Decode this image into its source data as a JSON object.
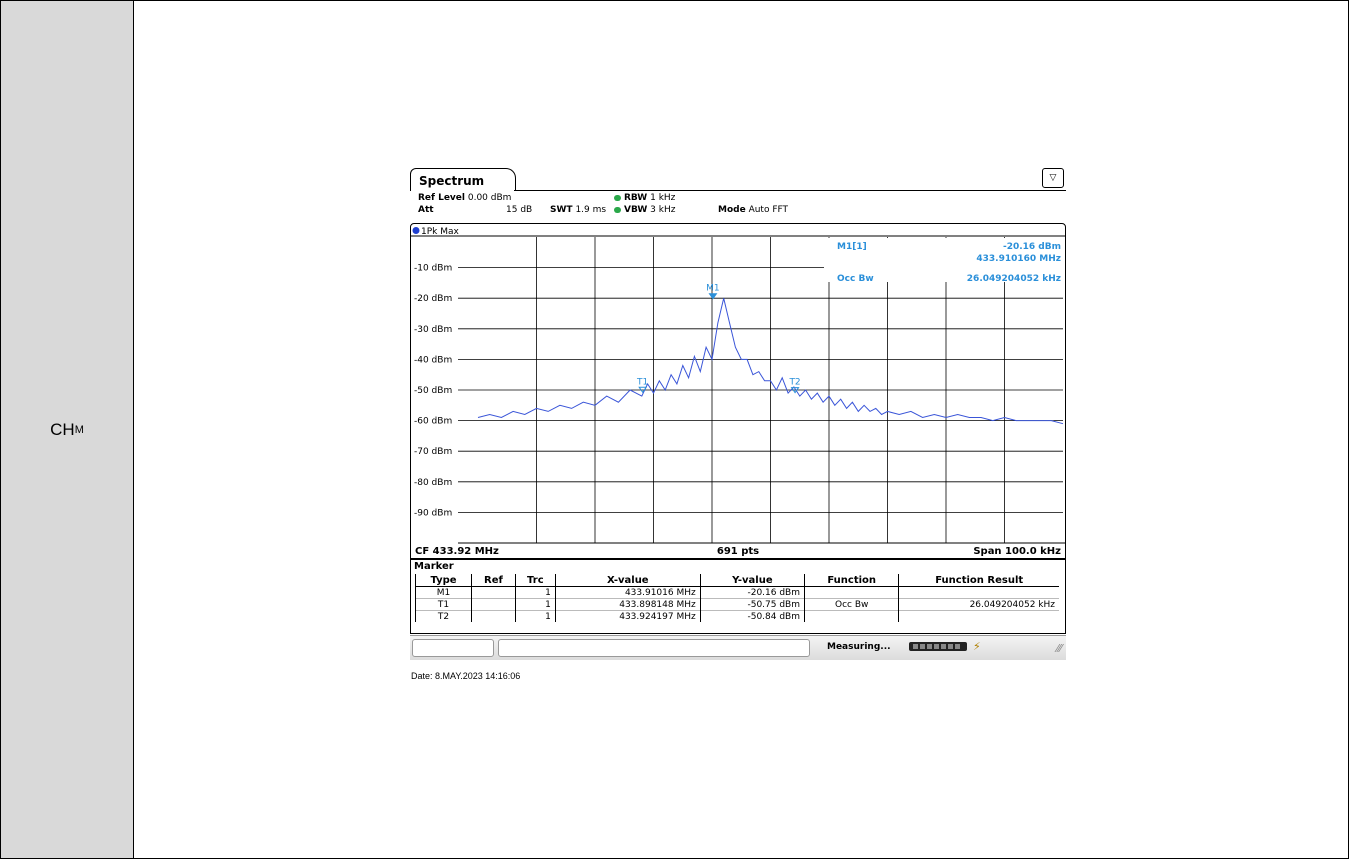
{
  "channel_label": "CH",
  "channel_sub": "M",
  "spectrum": {
    "tab_title": "Spectrum",
    "ref_level_label": "Ref Level",
    "ref_level_value": "0.00 dBm",
    "att_label": "Att",
    "att_value": "15 dB",
    "swt_label": "SWT",
    "swt_value": "1.9 ms",
    "rbw_label": "RBW",
    "rbw_value": "1 kHz",
    "vbw_label": "VBW",
    "vbw_value": "3 kHz",
    "mode_label": "Mode",
    "mode_value": "Auto FFT",
    "trace_label": "1Pk Max",
    "marker_readout": {
      "name": "M1[1]",
      "level": "-20.16 dBm",
      "freq": "433.910160 MHz",
      "occ_label": "Occ Bw",
      "occ_value": "26.049204052 kHz"
    },
    "cf_label": "CF 433.92 MHz",
    "pts_label": "691 pts",
    "span_label": "Span 100.0 kHz",
    "status_text": "Measuring...",
    "marker_section_title": "Marker",
    "marker_table": {
      "headers": [
        "Type",
        "Ref",
        "Trc",
        "X-value",
        "Y-value",
        "Function",
        "Function Result"
      ],
      "rows": [
        [
          "M1",
          "",
          "1",
          "433.91016 MHz",
          "-20.16 dBm",
          "",
          ""
        ],
        [
          "T1",
          "",
          "1",
          "433.898148 MHz",
          "-50.75 dBm",
          "Occ Bw",
          "26.049204052 kHz"
        ],
        [
          "T2",
          "",
          "1",
          "433.924197 MHz",
          "-50.84 dBm",
          "",
          ""
        ]
      ]
    }
  },
  "chart_data": {
    "type": "line",
    "xlabel": "",
    "ylabel": "",
    "y_tick_labels": [
      "-10 dBm",
      "-20 dBm",
      "-30 dBm",
      "-40 dBm",
      "-50 dBm",
      "-60 dBm",
      "-70 dBm",
      "-80 dBm",
      "-90 dBm"
    ],
    "y_ticks": [
      -10,
      -20,
      -30,
      -40,
      -50,
      -60,
      -70,
      -80,
      -90
    ],
    "ylim": [
      -100,
      0
    ],
    "xlim_khz_offset": [
      -50,
      50
    ],
    "series": [
      {
        "x_khz_offset": [
          -50,
          -48,
          -46,
          -44,
          -42,
          -40,
          -38,
          -36,
          -34,
          -32,
          -30,
          -28,
          -26,
          -24,
          -22,
          -21,
          -20,
          -19,
          -18,
          -17,
          -16,
          -15,
          -14,
          -13,
          -12,
          -11,
          -10,
          -9,
          -8,
          -7,
          -6,
          -5,
          -4,
          -3,
          -2,
          -1,
          0,
          1,
          2,
          3,
          4,
          5,
          6,
          7,
          8,
          9,
          10,
          11,
          12,
          13,
          14,
          15,
          16,
          17,
          18,
          19,
          20,
          22,
          24,
          26,
          28,
          30,
          32,
          34,
          36,
          38,
          40,
          42,
          44,
          46,
          48,
          50
        ],
        "y_dbm": [
          -59,
          -58,
          -59,
          -57,
          -58,
          -56,
          -57,
          -55,
          -56,
          -54,
          -55,
          -52,
          -54,
          -50,
          -52,
          -48,
          -51,
          -47,
          -50,
          -45,
          -48,
          -42,
          -46,
          -39,
          -44,
          -36,
          -40,
          -28,
          -20,
          -28,
          -36,
          -40,
          -40,
          -45,
          -44,
          -47,
          -47,
          -50,
          -46,
          -51,
          -49,
          -52,
          -50,
          -53,
          -51,
          -54,
          -52,
          -55,
          -53,
          -56,
          -54,
          -57,
          -55,
          -57,
          -56,
          -58,
          -57,
          -58,
          -57,
          -59,
          -58,
          -59,
          -58,
          -59,
          -59,
          -60,
          -59,
          -60,
          -60,
          -60,
          -60,
          -61
        ]
      }
    ],
    "markers": [
      {
        "name": "M1",
        "x_khz_offset": -9.84,
        "y_dbm": -20.16
      },
      {
        "name": "T1",
        "x_khz_offset": -21.85,
        "y_dbm": -50.75
      },
      {
        "name": "T2",
        "x_khz_offset": 4.2,
        "y_dbm": -50.84
      }
    ],
    "grid": true
  },
  "date_text": "Date: 8.MAY.2023  14:16:06"
}
